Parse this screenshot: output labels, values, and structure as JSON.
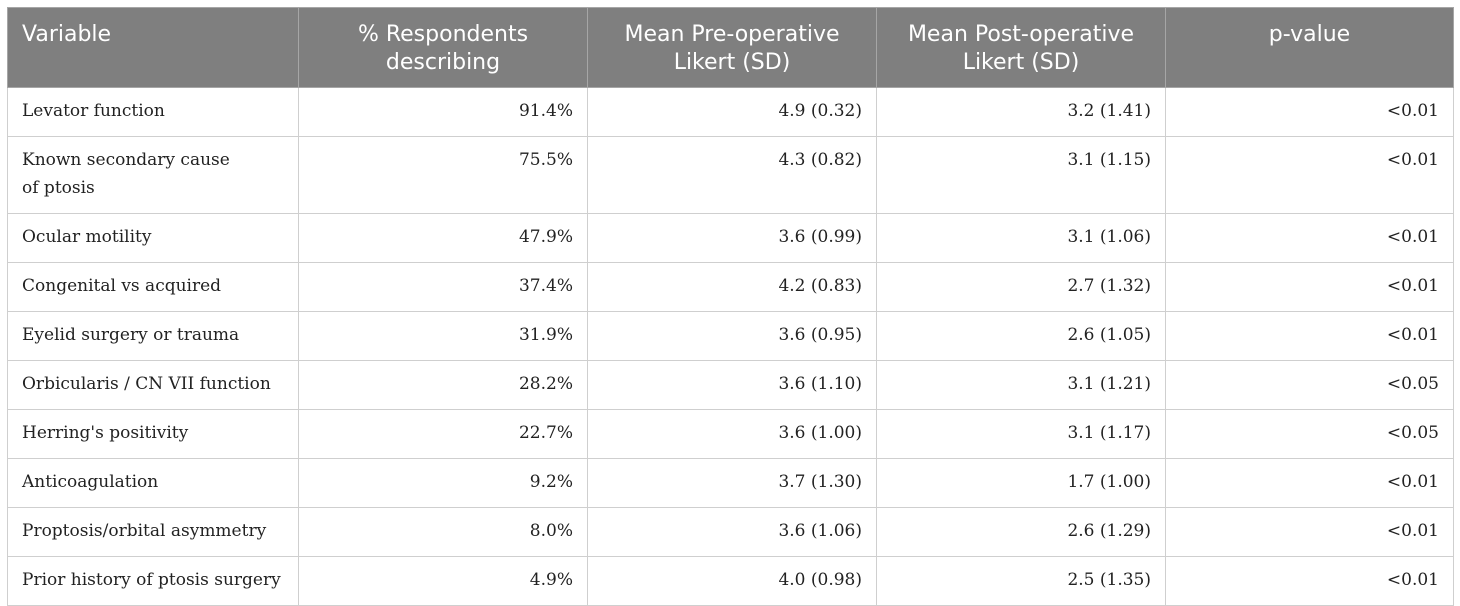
{
  "table": {
    "headers": [
      "Variable",
      "% Respondents describing",
      "Mean Pre-operative Likert (SD)",
      "Mean Post-operative Likert (SD)",
      "p-value"
    ],
    "rows": [
      {
        "variable": "Levator function",
        "respondents": "91.4%",
        "pre": "4.9 (0.32)",
        "post": "3.2 (1.41)",
        "p": "<0.01"
      },
      {
        "variable": "Known secondary cause\nof ptosis",
        "respondents": "75.5%",
        "pre": "4.3 (0.82)",
        "post": "3.1 (1.15)",
        "p": "<0.01"
      },
      {
        "variable": "Ocular motility",
        "respondents": "47.9%",
        "pre": "3.6 (0.99)",
        "post": "3.1 (1.06)",
        "p": "<0.01"
      },
      {
        "variable": "Congenital vs acquired",
        "respondents": "37.4%",
        "pre": "4.2 (0.83)",
        "post": "2.7 (1.32)",
        "p": "<0.01"
      },
      {
        "variable": "Eyelid surgery or trauma",
        "respondents": "31.9%",
        "pre": "3.6 (0.95)",
        "post": "2.6 (1.05)",
        "p": "<0.01"
      },
      {
        "variable": "Orbicularis / CN VII function",
        "respondents": "28.2%",
        "pre": "3.6 (1.10)",
        "post": "3.1 (1.21)",
        "p": "<0.05"
      },
      {
        "variable": "Herring's positivity",
        "respondents": "22.7%",
        "pre": "3.6 (1.00)",
        "post": "3.1 (1.17)",
        "p": "<0.05"
      },
      {
        "variable": "Anticoagulation",
        "respondents": "9.2%",
        "pre": "3.7 (1.30)",
        "post": "1.7 (1.00)",
        "p": "<0.01"
      },
      {
        "variable": "Proptosis/orbital asymmetry",
        "respondents": "8.0%",
        "pre": "3.6 (1.06)",
        "post": "2.6 (1.29)",
        "p": "<0.01"
      },
      {
        "variable": "Prior history of ptosis surgery",
        "respondents": "4.9%",
        "pre": "4.0 (0.98)",
        "post": "2.5 (1.35)",
        "p": "<0.01"
      }
    ]
  }
}
